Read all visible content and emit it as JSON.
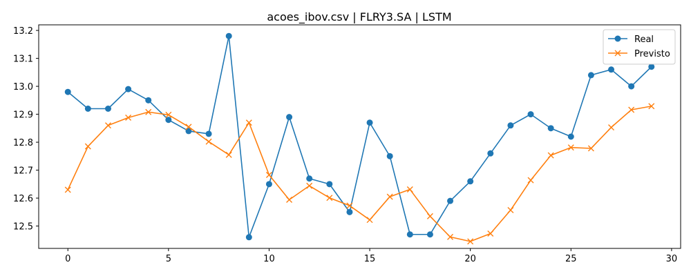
{
  "chart_data": {
    "type": "line",
    "title": "acoes_ibov.csv | FLRY3.SA | LSTM",
    "xlabel": "",
    "ylabel": "",
    "xlim": [
      -1.45,
      30.45
    ],
    "ylim": [
      12.42,
      13.22
    ],
    "x_ticks": [
      0,
      5,
      10,
      15,
      20,
      25,
      30
    ],
    "y_ticks": [
      12.5,
      12.6,
      12.7,
      12.8,
      12.9,
      13.0,
      13.1,
      13.2
    ],
    "y_tick_labels": [
      "12.5",
      "12.6",
      "12.7",
      "12.8",
      "12.9",
      "13.0",
      "13.1",
      "13.2"
    ],
    "grid": false,
    "legend_position": "top-right",
    "x": [
      0,
      1,
      2,
      3,
      4,
      5,
      6,
      7,
      8,
      9,
      10,
      11,
      12,
      13,
      14,
      15,
      16,
      17,
      18,
      19,
      20,
      21,
      22,
      23,
      24,
      25,
      26,
      27,
      28,
      29
    ],
    "series": [
      {
        "name": "Real",
        "color": "#1f77b4",
        "marker": "circle",
        "values": [
          12.98,
          12.92,
          12.92,
          12.99,
          12.95,
          12.88,
          12.84,
          12.83,
          13.18,
          12.46,
          12.65,
          12.89,
          12.67,
          12.65,
          12.55,
          12.87,
          12.75,
          12.47,
          12.47,
          12.59,
          12.66,
          12.76,
          12.86,
          12.9,
          12.85,
          12.82,
          13.04,
          13.06,
          13.0,
          13.07
        ]
      },
      {
        "name": "Previsto",
        "color": "#ff7f0e",
        "marker": "x",
        "values": [
          12.63,
          12.785,
          12.86,
          12.888,
          12.908,
          12.898,
          12.855,
          12.802,
          12.755,
          12.87,
          12.683,
          12.594,
          12.644,
          12.601,
          12.573,
          12.522,
          12.605,
          12.631,
          12.535,
          12.461,
          12.445,
          12.473,
          12.557,
          12.664,
          12.753,
          12.781,
          12.778,
          12.853,
          12.916,
          12.929
        ]
      }
    ]
  }
}
